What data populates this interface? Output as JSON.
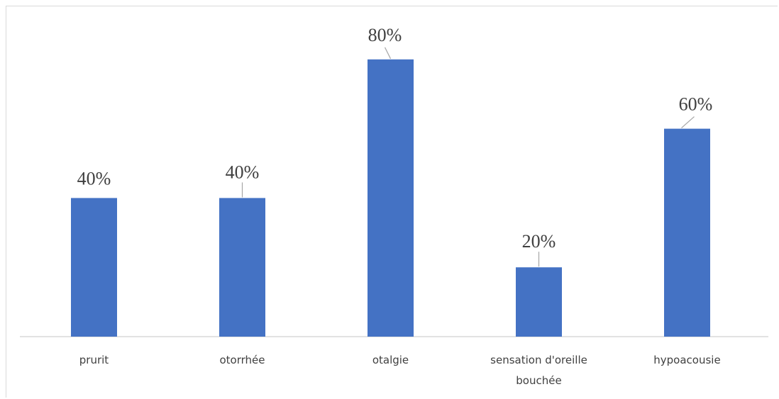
{
  "chart_data": {
    "type": "bar",
    "categories": [
      "prurit",
      "otorrhée",
      "otalgie",
      "sensation d'oreille bouchée",
      "hypoacousie"
    ],
    "values": [
      40,
      40,
      80,
      20,
      60
    ],
    "value_labels": [
      "40%",
      "40%",
      "80%",
      "20%",
      "60%"
    ],
    "ylim": [
      0,
      100
    ],
    "colors": {
      "bar": "#4472c4",
      "axis": "#d9d9d9",
      "leader": "#a6a6a6"
    },
    "grid": false,
    "legend": "none"
  }
}
